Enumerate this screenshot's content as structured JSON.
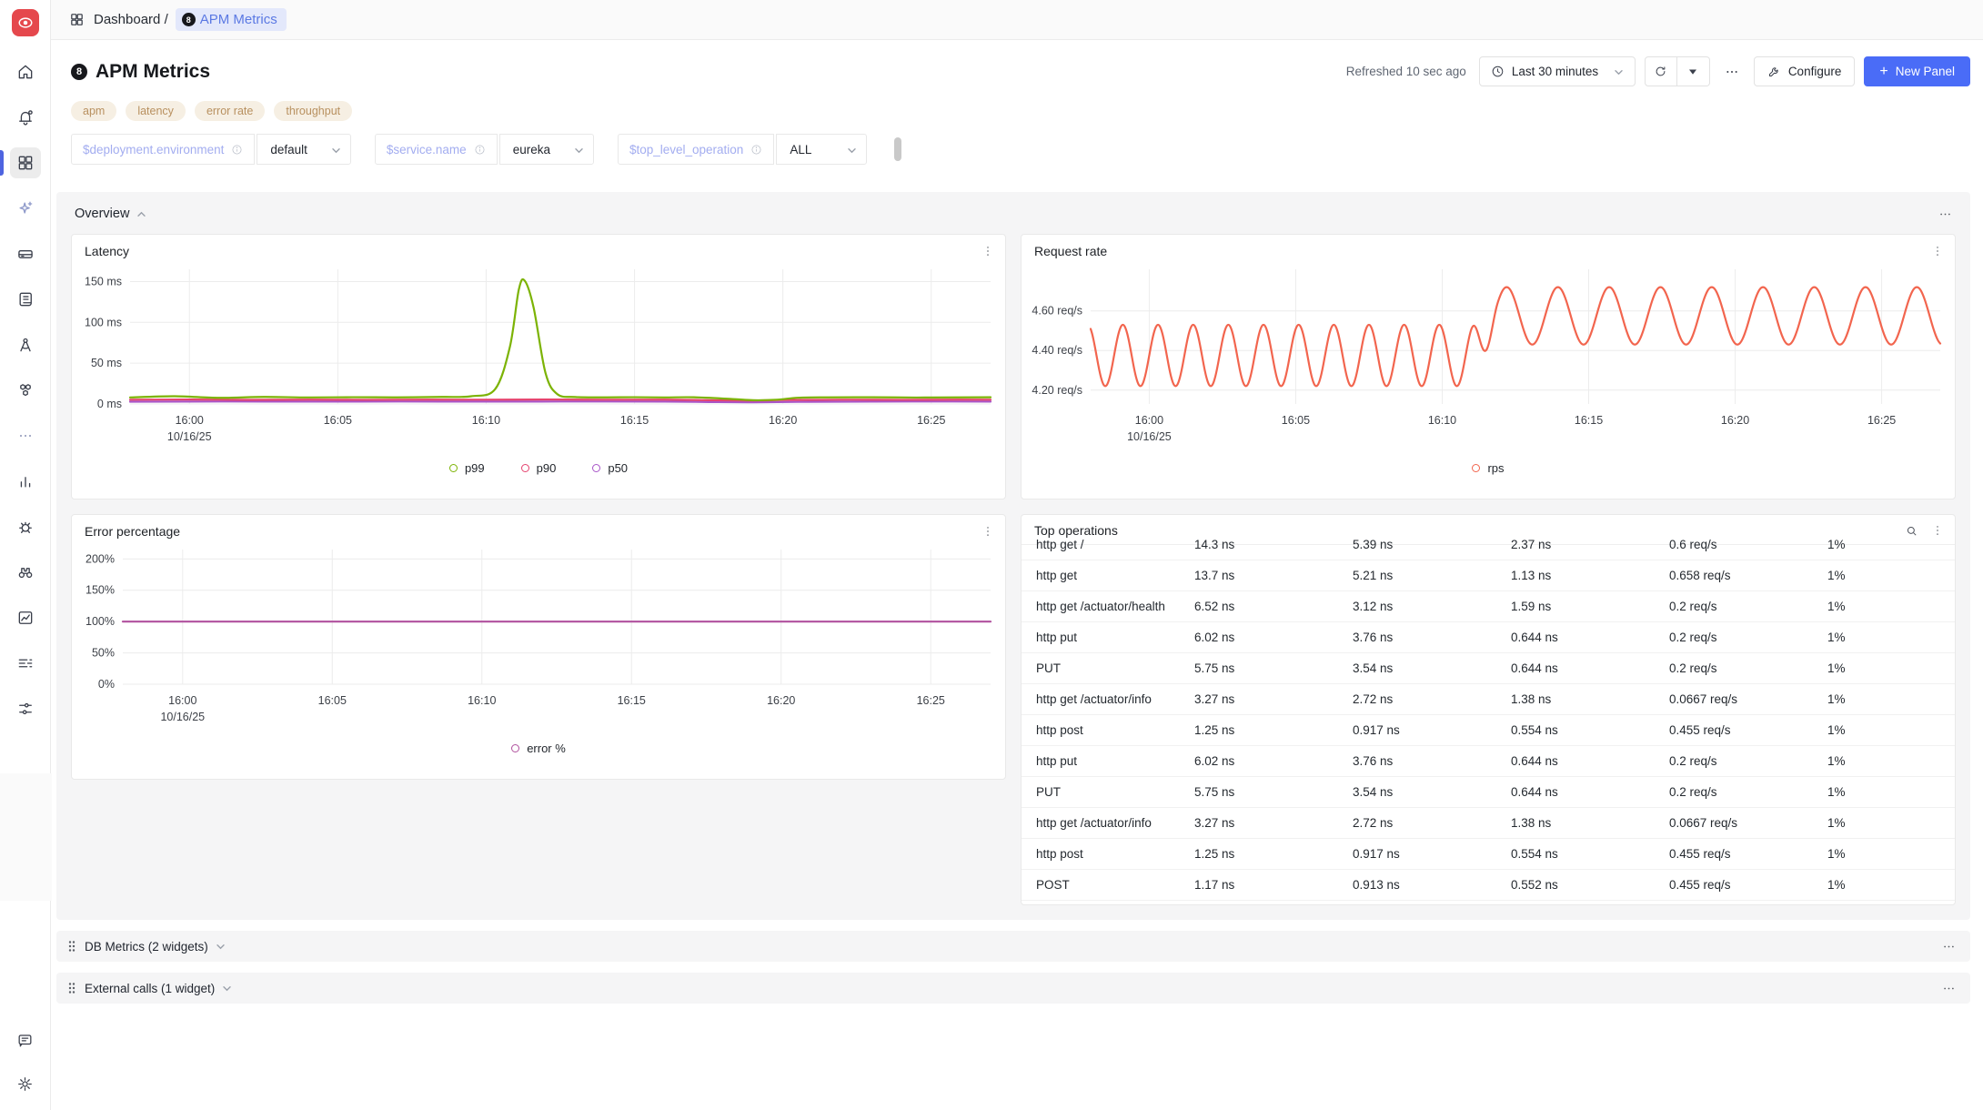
{
  "app": {
    "name": "SigNoz",
    "accent_color": "#4a6cf7",
    "logo_color": "#e5484d"
  },
  "sidebar": {
    "items": [
      {
        "icon": "home-icon"
      },
      {
        "icon": "alerts-bell-icon"
      },
      {
        "icon": "dashboards-grid-icon",
        "active": true
      },
      {
        "icon": "ai-sparkle-icon"
      },
      {
        "icon": "services-icon"
      },
      {
        "icon": "logs-icon"
      },
      {
        "icon": "traces-compass-icon"
      },
      {
        "icon": "infra-honeycomb-icon"
      },
      {
        "icon": "more-ellipsis-icon"
      },
      {
        "icon": "usage-bar-chart-icon"
      },
      {
        "icon": "exceptions-bug-icon"
      },
      {
        "icon": "explorer-binoculars-icon"
      },
      {
        "icon": "metrics-chart-icon"
      },
      {
        "icon": "billing-list-icon"
      },
      {
        "icon": "pipelines-icon"
      }
    ],
    "bottom_items": [
      {
        "icon": "feedback-message-icon"
      },
      {
        "icon": "settings-gear-icon"
      }
    ]
  },
  "breadcrumb": {
    "root": "Dashboard",
    "separator": "/",
    "current": "APM Metrics"
  },
  "header": {
    "title": "APM Metrics",
    "refreshed": "Refreshed 10 sec ago",
    "time_range": "Last 30 minutes",
    "configure_label": "Configure",
    "new_panel_plus": "+",
    "new_panel_label": "New Panel"
  },
  "tags": [
    "apm",
    "latency",
    "error rate",
    "throughput"
  ],
  "variables": [
    {
      "label": "$deployment.environment",
      "value": "default"
    },
    {
      "label": "$service.name",
      "value": "eureka"
    },
    {
      "label": "$top_level_operation",
      "value": "ALL",
      "has_scroll_thumb": true
    }
  ],
  "sections": {
    "overview": {
      "title": "Overview",
      "expanded": true
    },
    "db_metrics": {
      "title": "DB Metrics (2 widgets)",
      "expanded": false
    },
    "external_calls": {
      "title": "External calls (1 widget)",
      "expanded": false
    }
  },
  "chart_data": [
    {
      "key": "latency",
      "type": "line",
      "title": "Latency",
      "xlim": [
        0,
        29
      ],
      "x_origin": "15:58",
      "ylim": [
        0,
        165
      ],
      "yticks": [
        {
          "v": 0,
          "label": "0 ms"
        },
        {
          "v": 50,
          "label": "50 ms"
        },
        {
          "v": 100,
          "label": "100 ms"
        },
        {
          "v": 150,
          "label": "150 ms"
        }
      ],
      "xticks": [
        {
          "t": 2,
          "label": "16:00",
          "date": "10/16/25"
        },
        {
          "t": 7,
          "label": "16:05"
        },
        {
          "t": 12,
          "label": "16:10"
        },
        {
          "t": 17,
          "label": "16:15"
        },
        {
          "t": 22,
          "label": "16:20"
        },
        {
          "t": 27,
          "label": "16:25"
        }
      ],
      "margins": {
        "l": 64,
        "r": 16,
        "t": 10,
        "b": 50
      },
      "series": [
        {
          "name": "p50",
          "color": "#a855c8",
          "points": [
            [
              0,
              2.8
            ],
            [
              3,
              3
            ],
            [
              6,
              2.9
            ],
            [
              9,
              3
            ],
            [
              12,
              2.9
            ],
            [
              15,
              3
            ],
            [
              18,
              2.9
            ],
            [
              19.5,
              2.4
            ],
            [
              21,
              2.1
            ],
            [
              22.5,
              2.6
            ],
            [
              25,
              2.9
            ],
            [
              27,
              3
            ],
            [
              29,
              2.9
            ]
          ]
        },
        {
          "name": "p90",
          "color": "#e5426e",
          "points": [
            [
              0,
              5.2
            ],
            [
              2,
              5.4
            ],
            [
              4,
              5
            ],
            [
              6,
              5.3
            ],
            [
              8,
              5.1
            ],
            [
              10,
              5.3
            ],
            [
              12,
              5.2
            ],
            [
              14,
              5.4
            ],
            [
              16,
              5.2
            ],
            [
              18,
              5.3
            ],
            [
              19.5,
              4.6
            ],
            [
              21,
              4.2
            ],
            [
              22,
              4.8
            ],
            [
              24,
              5.2
            ],
            [
              26,
              5.1
            ],
            [
              28,
              5.3
            ],
            [
              29,
              5.2
            ]
          ]
        },
        {
          "name": "p99",
          "color": "#7cb305",
          "points": [
            [
              0,
              8
            ],
            [
              1.5,
              9.5
            ],
            [
              3,
              7.5
            ],
            [
              4.5,
              8.6
            ],
            [
              6,
              8
            ],
            [
              7.5,
              8.3
            ],
            [
              9,
              8.1
            ],
            [
              10.5,
              8.6
            ],
            [
              11.5,
              9.5
            ],
            [
              12.3,
              18
            ],
            [
              12.8,
              70
            ],
            [
              13.1,
              140
            ],
            [
              13.3,
              151
            ],
            [
              13.6,
              118
            ],
            [
              14,
              38
            ],
            [
              14.4,
              12
            ],
            [
              15,
              8.5
            ],
            [
              16,
              8.1
            ],
            [
              17,
              8.3
            ],
            [
              18,
              8
            ],
            [
              19,
              8.2
            ],
            [
              20.3,
              6
            ],
            [
              21,
              4.6
            ],
            [
              21.8,
              5.2
            ],
            [
              22.5,
              7.6
            ],
            [
              23.5,
              8.1
            ],
            [
              25,
              8.2
            ],
            [
              26.5,
              7.9
            ],
            [
              28,
              8.1
            ],
            [
              29,
              8.2
            ]
          ]
        }
      ],
      "legend": [
        {
          "label": "p99",
          "color": "#7cb305"
        },
        {
          "label": "p90",
          "color": "#e5426e"
        },
        {
          "label": "p50",
          "color": "#a855c8"
        }
      ]
    },
    {
      "key": "request_rate",
      "type": "line",
      "title": "Request rate",
      "xlim": [
        0,
        29
      ],
      "x_origin": "15:58",
      "ylim": [
        4.13,
        4.81
      ],
      "yticks": [
        {
          "v": 4.2,
          "label": "4.20 req/s"
        },
        {
          "v": 4.4,
          "label": "4.40 req/s"
        },
        {
          "v": 4.6,
          "label": "4.60 req/s"
        }
      ],
      "xticks": [
        {
          "t": 2,
          "label": "16:00",
          "date": "10/16/25"
        },
        {
          "t": 7,
          "label": "16:05"
        },
        {
          "t": 12,
          "label": "16:10"
        },
        {
          "t": 17,
          "label": "16:15"
        },
        {
          "t": 22,
          "label": "16:20"
        },
        {
          "t": 27,
          "label": "16:25"
        }
      ],
      "margins": {
        "l": 76,
        "r": 16,
        "t": 10,
        "b": 50
      },
      "series": [
        {
          "name": "rps",
          "color": "#f2654e",
          "wave": {
            "step": 0.05,
            "blend_from": 12.9,
            "blend_to": 13.9,
            "segments": [
              {
                "from": 0,
                "to": 12.9,
                "mid": 4.375,
                "amp": 0.155,
                "period": 1.2,
                "tmax": -0.1
              },
              {
                "from": 13.9,
                "to": 29,
                "mid": 4.575,
                "amp": 0.145,
                "period": 1.75,
                "tmax": 14.2
              }
            ]
          }
        }
      ],
      "legend": [
        {
          "label": "rps",
          "color": "#f2654e"
        }
      ]
    },
    {
      "key": "error_percentage",
      "type": "line",
      "title": "Error percentage",
      "xlim": [
        0,
        29
      ],
      "x_origin": "15:58",
      "ylim": [
        0,
        215
      ],
      "yticks": [
        {
          "v": 0,
          "label": "0%"
        },
        {
          "v": 50,
          "label": "50%"
        },
        {
          "v": 100,
          "label": "100%"
        },
        {
          "v": 150,
          "label": "150%"
        },
        {
          "v": 200,
          "label": "200%"
        }
      ],
      "xticks": [
        {
          "t": 2,
          "label": "16:00",
          "date": "10/16/25"
        },
        {
          "t": 7,
          "label": "16:05"
        },
        {
          "t": 12,
          "label": "16:10"
        },
        {
          "t": 17,
          "label": "16:15"
        },
        {
          "t": 22,
          "label": "16:20"
        },
        {
          "t": 27,
          "label": "16:25"
        }
      ],
      "margins": {
        "l": 56,
        "r": 16,
        "t": 10,
        "b": 50
      },
      "series": [
        {
          "name": "error %",
          "color": "#b0519e",
          "points": [
            [
              0,
              100
            ],
            [
              29,
              100
            ]
          ]
        }
      ],
      "legend": [
        {
          "label": "error %",
          "color": "#b0519e"
        }
      ]
    }
  ],
  "top_operations": {
    "title": "Top operations",
    "rows": [
      [
        "http get /",
        "14.3 ns",
        "5.39 ns",
        "2.37 ns",
        "0.6 req/s",
        "1%"
      ],
      [
        "http get",
        "13.7 ns",
        "5.21 ns",
        "1.13 ns",
        "0.658 req/s",
        "1%"
      ],
      [
        "http get /actuator/health",
        "6.52 ns",
        "3.12 ns",
        "1.59 ns",
        "0.2 req/s",
        "1%"
      ],
      [
        "http put",
        "6.02 ns",
        "3.76 ns",
        "0.644 ns",
        "0.2 req/s",
        "1%"
      ],
      [
        "PUT",
        "5.75 ns",
        "3.54 ns",
        "0.644 ns",
        "0.2 req/s",
        "1%"
      ],
      [
        "http get /actuator/info",
        "3.27 ns",
        "2.72 ns",
        "1.38 ns",
        "0.0667 req/s",
        "1%"
      ],
      [
        "http post",
        "1.25 ns",
        "0.917 ns",
        "0.554 ns",
        "0.455 req/s",
        "1%"
      ],
      [
        "http put",
        "6.02 ns",
        "3.76 ns",
        "0.644 ns",
        "0.2 req/s",
        "1%"
      ],
      [
        "PUT",
        "5.75 ns",
        "3.54 ns",
        "0.644 ns",
        "0.2 req/s",
        "1%"
      ],
      [
        "http get /actuator/info",
        "3.27 ns",
        "2.72 ns",
        "1.38 ns",
        "0.0667 req/s",
        "1%"
      ],
      [
        "http post",
        "1.25 ns",
        "0.917 ns",
        "0.554 ns",
        "0.455 req/s",
        "1%"
      ],
      [
        "POST",
        "1.17 ns",
        "0.913 ns",
        "0.552 ns",
        "0.455 req/s",
        "1%"
      ]
    ]
  }
}
